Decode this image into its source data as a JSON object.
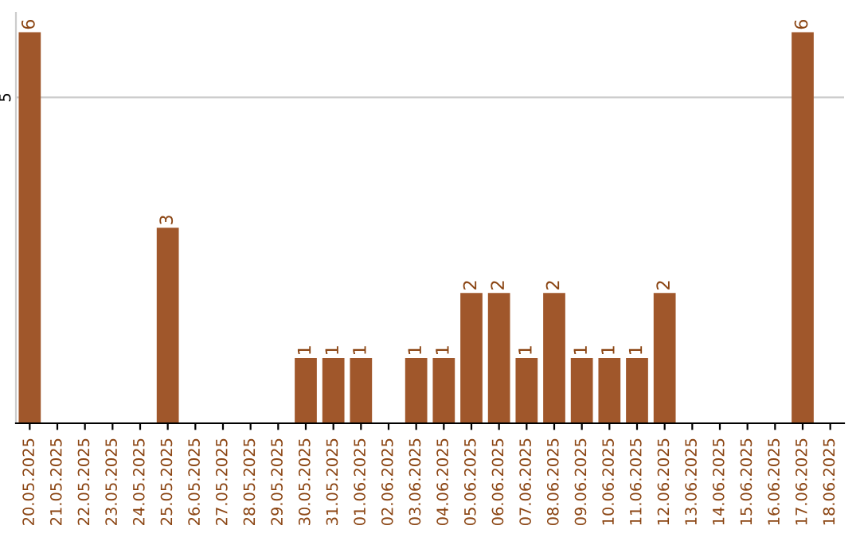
{
  "chart_data": {
    "type": "bar",
    "categories": [
      "20.05.2025",
      "21.05.2025",
      "22.05.2025",
      "23.05.2025",
      "24.05.2025",
      "25.05.2025",
      "26.05.2025",
      "27.05.2025",
      "28.05.2025",
      "29.05.2025",
      "30.05.2025",
      "31.05.2025",
      "01.06.2025",
      "02.06.2025",
      "03.06.2025",
      "04.06.2025",
      "05.06.2025",
      "06.06.2025",
      "07.06.2025",
      "08.06.2025",
      "09.06.2025",
      "10.06.2025",
      "11.06.2025",
      "12.06.2025",
      "13.06.2025",
      "14.06.2025",
      "15.06.2025",
      "16.06.2025",
      "17.06.2025",
      "18.06.2025"
    ],
    "values": [
      6,
      0,
      0,
      0,
      0,
      3,
      0,
      0,
      0,
      0,
      1,
      1,
      1,
      0,
      1,
      1,
      2,
      2,
      1,
      2,
      1,
      1,
      1,
      2,
      0,
      0,
      0,
      0,
      6,
      0
    ],
    "value_labels": [
      "6",
      null,
      null,
      null,
      null,
      "3",
      null,
      null,
      null,
      null,
      "1",
      "1",
      "1",
      null,
      "1",
      "1",
      "2",
      "2",
      "1",
      "2",
      "1",
      "1",
      "1",
      "2",
      null,
      null,
      null,
      null,
      "6",
      null
    ],
    "color": "#a0572b",
    "ylim": [
      0,
      6.3
    ],
    "yticks": [
      5
    ],
    "grid": "y"
  }
}
